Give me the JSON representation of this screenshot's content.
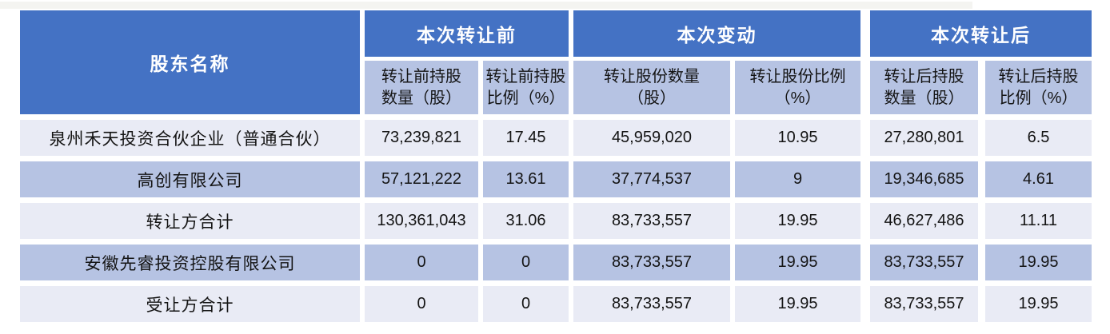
{
  "colors": {
    "header_blue": "#4472c4",
    "subheader_blue": "#b6c3e3",
    "row_light": "#e9ebf5",
    "row_dark": "#b6c3e3",
    "header_text": "#ffffff",
    "body_text": "#141414",
    "gap_white": "#ffffff"
  },
  "table": {
    "shareholder_col_header": "股东名称",
    "groups": [
      {
        "label": "本次转让前",
        "sub": [
          {
            "l1": "转让前持股",
            "l2": "数量（股）"
          },
          {
            "l1": "转让前持股",
            "l2": "比例（%）"
          }
        ]
      },
      {
        "label": "本次变动",
        "sub": [
          {
            "l1": "转让股份数量",
            "l2": "（股）"
          },
          {
            "l1": "转让股份比例",
            "l2": "（%）"
          }
        ]
      },
      {
        "label": "本次转让后",
        "sub": [
          {
            "l1": "转让后持股",
            "l2": "数量（股）"
          },
          {
            "l1": "转让后持股",
            "l2": "比例（%）"
          }
        ]
      }
    ],
    "rows": [
      {
        "name": "泉州禾天投资合伙企业（普通合伙）",
        "values": [
          "73,239,821",
          "17.45",
          "45,959,020",
          "10.95",
          "27,280,801",
          "6.5"
        ]
      },
      {
        "name": "高创有限公司",
        "values": [
          "57,121,222",
          "13.61",
          "37,774,537",
          "9",
          "19,346,685",
          "4.61"
        ]
      },
      {
        "name": "转让方合计",
        "values": [
          "130,361,043",
          "31.06",
          "83,733,557",
          "19.95",
          "46,627,486",
          "11.11"
        ]
      },
      {
        "name": "安徽先睿投资控股有限公司",
        "values": [
          "0",
          "0",
          "83,733,557",
          "19.95",
          "83,733,557",
          "19.95"
        ]
      },
      {
        "name": "受让方合计",
        "values": [
          "0",
          "0",
          "83,733,557",
          "19.95",
          "83,733,557",
          "19.95"
        ]
      }
    ]
  }
}
